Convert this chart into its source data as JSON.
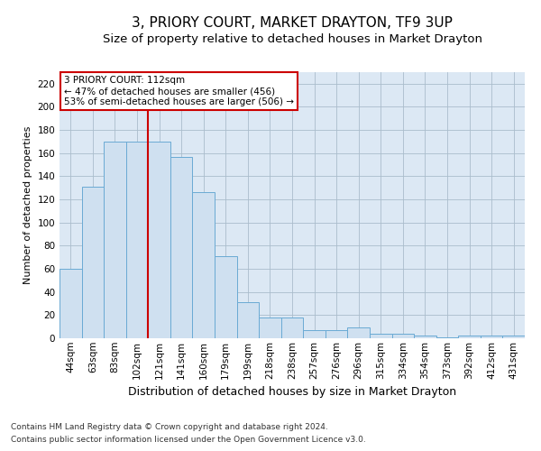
{
  "title": "3, PRIORY COURT, MARKET DRAYTON, TF9 3UP",
  "subtitle": "Size of property relative to detached houses in Market Drayton",
  "xlabel": "Distribution of detached houses by size in Market Drayton",
  "ylabel": "Number of detached properties",
  "footer_line1": "Contains HM Land Registry data © Crown copyright and database right 2024.",
  "footer_line2": "Contains public sector information licensed under the Open Government Licence v3.0.",
  "categories": [
    "44sqm",
    "63sqm",
    "83sqm",
    "102sqm",
    "121sqm",
    "141sqm",
    "160sqm",
    "179sqm",
    "199sqm",
    "218sqm",
    "238sqm",
    "257sqm",
    "276sqm",
    "296sqm",
    "315sqm",
    "334sqm",
    "354sqm",
    "373sqm",
    "392sqm",
    "412sqm",
    "431sqm"
  ],
  "values": [
    60,
    131,
    170,
    170,
    170,
    157,
    126,
    71,
    31,
    18,
    18,
    7,
    7,
    9,
    4,
    4,
    2,
    1,
    2,
    2,
    2
  ],
  "bar_color": "#cfe0f0",
  "bar_edge_color": "#6aaad4",
  "bar_edge_width": 0.7,
  "grid_color": "#aabccc",
  "background_color": "#dce8f4",
  "ylim": [
    0,
    230
  ],
  "yticks": [
    0,
    20,
    40,
    60,
    80,
    100,
    120,
    140,
    160,
    180,
    200,
    220
  ],
  "vline_color": "#cc0000",
  "annotation_text": "3 PRIORY COURT: 112sqm\n← 47% of detached houses are smaller (456)\n53% of semi-detached houses are larger (506) →",
  "annotation_box_color": "#ffffff",
  "annotation_border_color": "#cc0000",
  "title_fontsize": 11,
  "subtitle_fontsize": 9.5,
  "xlabel_fontsize": 9,
  "ylabel_fontsize": 8,
  "tick_fontsize": 7.5,
  "footer_fontsize": 6.5,
  "annotation_fontsize": 7.5
}
